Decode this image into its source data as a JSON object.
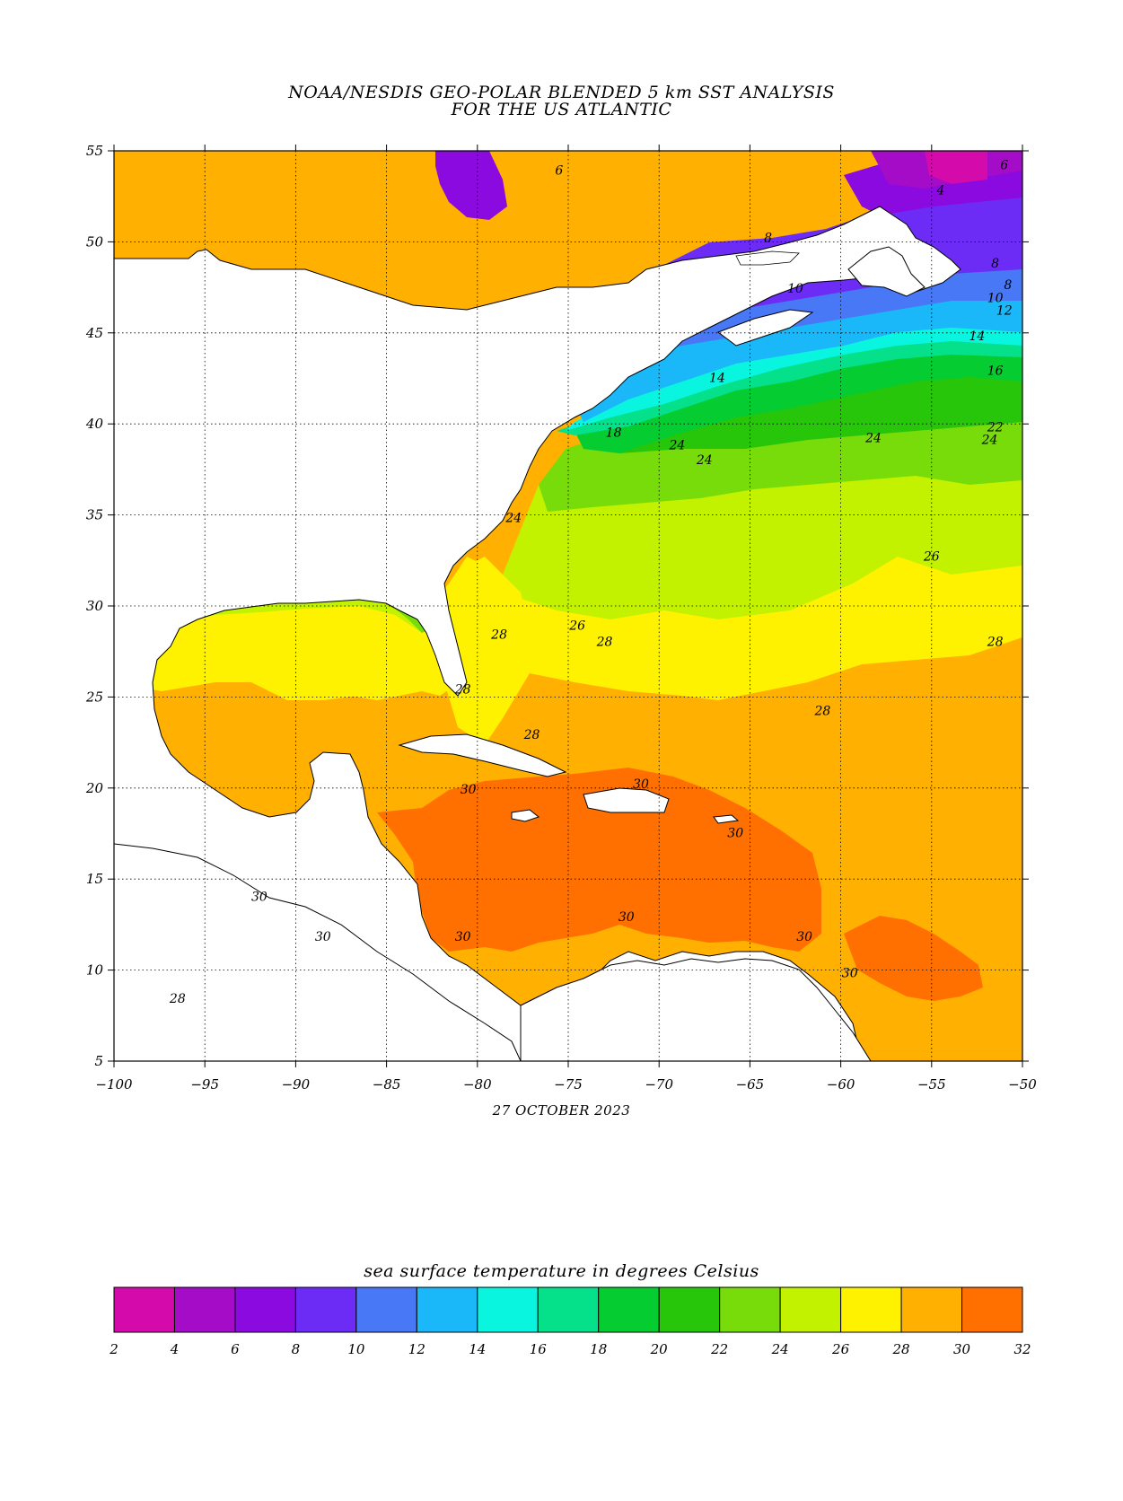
{
  "title": {
    "line1": "NOAA/NESDIS GEO-POLAR BLENDED 5 km SST ANALYSIS",
    "line2": "FOR THE US ATLANTIC"
  },
  "date": "27 OCTOBER 2023",
  "map": {
    "lon_range": [
      -100,
      -50
    ],
    "lat_range": [
      5,
      55
    ],
    "lon_ticks": [
      -100,
      -95,
      -90,
      -85,
      -80,
      -75,
      -70,
      -65,
      -60,
      -55,
      -50
    ],
    "lon_tick_labels": [
      "−100",
      "−95",
      "−90",
      "−85",
      "−80",
      "−75",
      "−70",
      "−65",
      "−60",
      "−55",
      "−50"
    ],
    "lat_ticks": [
      5,
      10,
      15,
      20,
      25,
      30,
      35,
      40,
      45,
      50,
      55
    ],
    "lat_tick_labels": [
      "5",
      "10",
      "15",
      "20",
      "25",
      "30",
      "35",
      "40",
      "45",
      "50",
      "55"
    ],
    "grid": "dotted",
    "contour_labels": [
      {
        "text": "6",
        "lon": -75.5,
        "lat": 53.7
      },
      {
        "text": "6",
        "lon": -51.0,
        "lat": 54.0
      },
      {
        "text": "4",
        "lon": -54.5,
        "lat": 52.6
      },
      {
        "text": "8",
        "lon": -64.0,
        "lat": 50.0
      },
      {
        "text": "8",
        "lon": -51.5,
        "lat": 48.6
      },
      {
        "text": "10",
        "lon": -62.5,
        "lat": 47.2
      },
      {
        "text": "8",
        "lon": -50.8,
        "lat": 47.4
      },
      {
        "text": "10",
        "lon": -51.5,
        "lat": 46.7
      },
      {
        "text": "12",
        "lon": -51.0,
        "lat": 46.0
      },
      {
        "text": "14",
        "lon": -52.5,
        "lat": 44.6
      },
      {
        "text": "14",
        "lon": -66.8,
        "lat": 42.3
      },
      {
        "text": "16",
        "lon": -51.5,
        "lat": 42.7
      },
      {
        "text": "22",
        "lon": -51.5,
        "lat": 39.6
      },
      {
        "text": "24",
        "lon": -51.8,
        "lat": 38.9
      },
      {
        "text": "24",
        "lon": -58.2,
        "lat": 39.0
      },
      {
        "text": "18",
        "lon": -72.5,
        "lat": 39.3
      },
      {
        "text": "24",
        "lon": -69.0,
        "lat": 38.6
      },
      {
        "text": "24",
        "lon": -67.5,
        "lat": 37.8
      },
      {
        "text": "24",
        "lon": -78.0,
        "lat": 34.6
      },
      {
        "text": "26",
        "lon": -55.0,
        "lat": 32.5
      },
      {
        "text": "26",
        "lon": -74.5,
        "lat": 28.7
      },
      {
        "text": "28",
        "lon": -73.0,
        "lat": 27.8
      },
      {
        "text": "28",
        "lon": -51.5,
        "lat": 27.8
      },
      {
        "text": "28",
        "lon": -78.8,
        "lat": 28.2
      },
      {
        "text": "28",
        "lon": -80.8,
        "lat": 25.2
      },
      {
        "text": "28",
        "lon": -77.0,
        "lat": 22.7
      },
      {
        "text": "28",
        "lon": -61.0,
        "lat": 24.0
      },
      {
        "text": "30",
        "lon": -80.5,
        "lat": 19.7
      },
      {
        "text": "30",
        "lon": -71.0,
        "lat": 20.0
      },
      {
        "text": "30",
        "lon": -65.8,
        "lat": 17.3
      },
      {
        "text": "30",
        "lon": -71.8,
        "lat": 12.7
      },
      {
        "text": "30",
        "lon": -80.8,
        "lat": 11.6
      },
      {
        "text": "30",
        "lon": -92.0,
        "lat": 13.8
      },
      {
        "text": "30",
        "lon": -88.5,
        "lat": 11.6
      },
      {
        "text": "30",
        "lon": -62.0,
        "lat": 11.6
      },
      {
        "text": "30",
        "lon": -59.5,
        "lat": 9.6
      },
      {
        "text": "28",
        "lon": -96.5,
        "lat": 8.2
      }
    ]
  },
  "colorbar": {
    "title": "sea surface temperature in degrees Celsius",
    "labels": [
      "2",
      "4",
      "6",
      "8",
      "10",
      "12",
      "14",
      "16",
      "18",
      "20",
      "22",
      "24",
      "26",
      "28",
      "30",
      "32"
    ],
    "colors": [
      "#d40aaa",
      "#a50cc8",
      "#8a0ae0",
      "#6c2cf5",
      "#4878f5",
      "#1ab8f8",
      "#0af5e0",
      "#05e08a",
      "#05cc30",
      "#28c60a",
      "#78dc0a",
      "#c2f200",
      "#fff200",
      "#ffb000",
      "#ff7000"
    ]
  },
  "colors": {
    "land": "#ffffff",
    "ocean_warm": "#ffb000",
    "ocean_hot": "#ff7000"
  }
}
